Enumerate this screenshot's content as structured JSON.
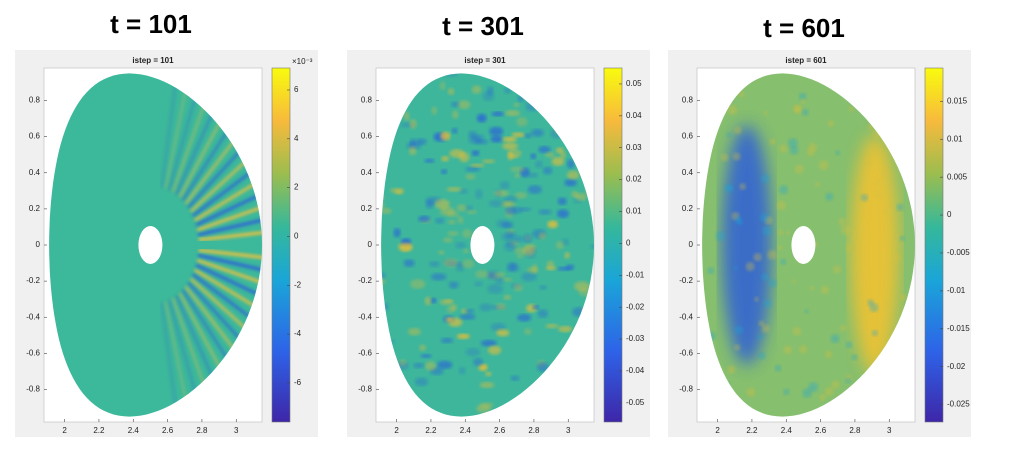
{
  "chart_data": [
    {
      "type": "heatmap",
      "heading": "t = 101",
      "title": "istep = 101",
      "xlim": [
        1.88,
        3.15
      ],
      "xticks": [
        2,
        2.2,
        2.4,
        2.6,
        2.8,
        3
      ],
      "ylim": [
        -0.98,
        0.98
      ],
      "yticks": [
        -0.8,
        -0.6,
        -0.4,
        -0.2,
        0,
        0.2,
        0.4,
        0.6,
        0.8
      ],
      "clim": [
        -7.6,
        6.9
      ],
      "cticks": [
        -6,
        -4,
        -2,
        0,
        2,
        4,
        6
      ],
      "colorbar_exponent": "×10⁻³"
    },
    {
      "type": "heatmap",
      "heading": "t = 301",
      "title": "istep = 301",
      "xlim": [
        1.88,
        3.15
      ],
      "xticks": [
        2,
        2.2,
        2.4,
        2.6,
        2.8,
        3
      ],
      "ylim": [
        -0.98,
        0.98
      ],
      "yticks": [
        -0.8,
        -0.6,
        -0.4,
        -0.2,
        0,
        0.2,
        0.4,
        0.6,
        0.8
      ],
      "clim": [
        -0.056,
        0.055
      ],
      "cticks": [
        -0.05,
        -0.04,
        -0.03,
        -0.02,
        -0.01,
        0,
        0.01,
        0.02,
        0.03,
        0.04,
        0.05
      ]
    },
    {
      "type": "heatmap",
      "heading": "t = 601",
      "title": "istep = 601",
      "xlim": [
        1.88,
        3.15
      ],
      "xticks": [
        2,
        2.2,
        2.4,
        2.6,
        2.8,
        3
      ],
      "ylim": [
        -0.98,
        0.98
      ],
      "yticks": [
        -0.8,
        -0.6,
        -0.4,
        -0.2,
        0,
        0.2,
        0.4,
        0.6,
        0.8
      ],
      "clim": [
        -0.0273,
        0.0194
      ],
      "cticks": [
        -0.025,
        -0.02,
        -0.015,
        -0.01,
        -0.005,
        0,
        0.005,
        0.01,
        0.015
      ]
    }
  ]
}
